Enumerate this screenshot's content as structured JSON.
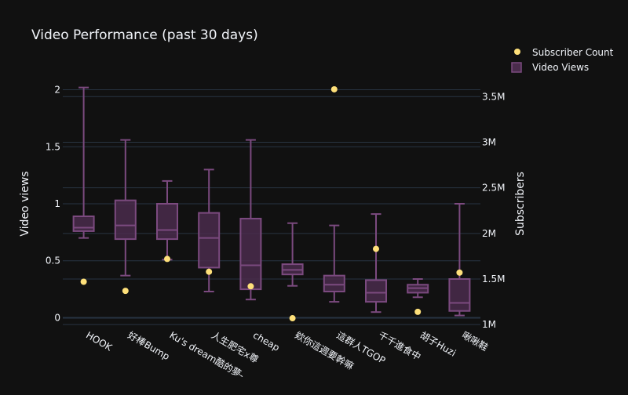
{
  "chart_data": {
    "type": "box",
    "title": "Video Performance (past 30 days)",
    "y_left": {
      "label": "Video views",
      "range": [
        -0.1,
        2.1
      ],
      "ticks": [
        0,
        0.5,
        1,
        1.5,
        2
      ],
      "tick_labels": [
        "0",
        "0.5",
        "1",
        "1.5",
        "2"
      ],
      "gridlines": true
    },
    "y_right": {
      "label": "Subscribers",
      "range": [
        950000,
        3700000
      ],
      "ticks": [
        1000000,
        1500000,
        2000000,
        2500000,
        3000000,
        3500000
      ],
      "tick_labels": [
        "1M",
        "1.5M",
        "2M",
        "2.5M",
        "3M",
        "3.5M"
      ],
      "gridlines": true
    },
    "categories": [
      "HOOK",
      "好棒Bump",
      "Ku's dream酷的夢-",
      "人生肥宅x尊",
      "cheap",
      "欸你這週要幹嘛",
      "這群人TGOP",
      "千千進食中",
      "胡子Huzi",
      "啾啾鞋"
    ],
    "legend": {
      "placement": "top-right",
      "items": [
        {
          "label": "Subscriber Count",
          "marker": "dot"
        },
        {
          "label": "Video Views",
          "marker": "box"
        }
      ]
    },
    "series": [
      {
        "name": "Video Views",
        "axis": "left",
        "boxes": [
          {
            "min": 0.7,
            "q1": 0.76,
            "median": 0.79,
            "q3": 0.89,
            "max": 2.02
          },
          {
            "min": 0.37,
            "q1": 0.69,
            "median": 0.81,
            "q3": 1.03,
            "max": 1.56
          },
          {
            "min": 0.51,
            "q1": 0.69,
            "median": 0.77,
            "q3": 1.0,
            "max": 1.2
          },
          {
            "min": 0.23,
            "q1": 0.44,
            "median": 0.7,
            "q3": 0.92,
            "max": 1.3
          },
          {
            "min": 0.16,
            "q1": 0.25,
            "median": 0.46,
            "q3": 0.87,
            "max": 1.56
          },
          {
            "min": 0.28,
            "q1": 0.38,
            "median": 0.42,
            "q3": 0.47,
            "max": 0.83
          },
          {
            "min": 0.14,
            "q1": 0.23,
            "median": 0.29,
            "q3": 0.37,
            "max": 0.81
          },
          {
            "min": 0.05,
            "q1": 0.14,
            "median": 0.22,
            "q3": 0.33,
            "max": 0.91
          },
          {
            "min": 0.18,
            "q1": 0.22,
            "median": 0.26,
            "q3": 0.29,
            "max": 0.34
          },
          {
            "min": 0.02,
            "q1": 0.06,
            "median": 0.13,
            "q3": 0.34,
            "max": 1.0
          }
        ]
      },
      {
        "name": "Subscriber Count",
        "axis": "right",
        "values": [
          1470000,
          1370000,
          1720000,
          1580000,
          1420000,
          1070000,
          3580000,
          1830000,
          1140000,
          1570000
        ]
      }
    ],
    "colors": {
      "background": "#111111",
      "grid": "#283442",
      "box_stroke": "#7b4a7f",
      "box_fill": "#4a2c4c",
      "dot": "#fee07a",
      "text": "#f2f5fa"
    }
  }
}
